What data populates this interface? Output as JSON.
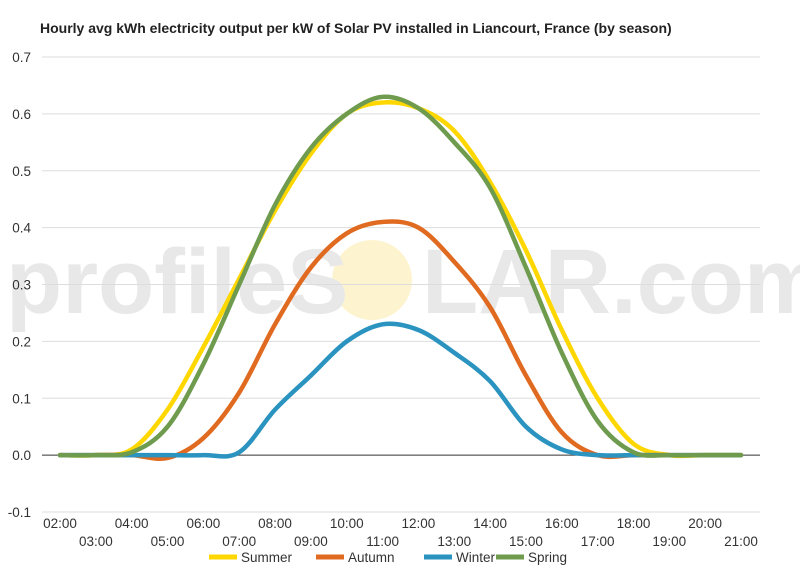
{
  "chart_data": {
    "type": "line",
    "title": "Hourly avg kWh electricity output per kW of Solar PV installed in Liancourt, France (by season)",
    "watermark": {
      "left": "profileS",
      "right": "LAR.com"
    },
    "xlabel": "",
    "ylabel": "",
    "ylim": [
      -0.1,
      0.7
    ],
    "yticks": [
      "0.7",
      "0.6",
      "0.5",
      "0.4",
      "0.3",
      "0.2",
      "0.1",
      "0.0",
      "-0.1"
    ],
    "x": [
      "02:00",
      "03:00",
      "04:00",
      "05:00",
      "06:00",
      "07:00",
      "08:00",
      "09:00",
      "10:00",
      "11:00",
      "12:00",
      "13:00",
      "14:00",
      "15:00",
      "16:00",
      "17:00",
      "18:00",
      "19:00",
      "20:00",
      "21:00"
    ],
    "grid": true,
    "legend": "bottom",
    "series": [
      {
        "name": "Summer",
        "color": "#FFD700",
        "values": [
          0.0,
          0.0,
          0.01,
          0.08,
          0.19,
          0.31,
          0.43,
          0.53,
          0.6,
          0.62,
          0.61,
          0.57,
          0.48,
          0.36,
          0.22,
          0.1,
          0.02,
          0.0,
          0.0,
          0.0
        ]
      },
      {
        "name": "Autumn",
        "color": "#E06A20",
        "values": [
          0.0,
          0.0,
          0.0,
          -0.005,
          0.03,
          0.11,
          0.23,
          0.33,
          0.39,
          0.41,
          0.4,
          0.34,
          0.26,
          0.14,
          0.04,
          0.0,
          0.0,
          0.0,
          0.0,
          0.0
        ]
      },
      {
        "name": "Winter",
        "color": "#2A93BF",
        "values": [
          0.0,
          0.0,
          0.0,
          0.0,
          0.0,
          0.005,
          0.08,
          0.14,
          0.2,
          0.23,
          0.22,
          0.18,
          0.13,
          0.05,
          0.01,
          0.0,
          0.0,
          0.0,
          0.0,
          0.0
        ]
      },
      {
        "name": "Spring",
        "color": "#6E9B4E",
        "values": [
          0.0,
          0.0,
          0.005,
          0.05,
          0.16,
          0.3,
          0.44,
          0.54,
          0.6,
          0.63,
          0.61,
          0.55,
          0.47,
          0.33,
          0.18,
          0.06,
          0.005,
          0.0,
          0.0,
          0.0
        ]
      }
    ]
  }
}
